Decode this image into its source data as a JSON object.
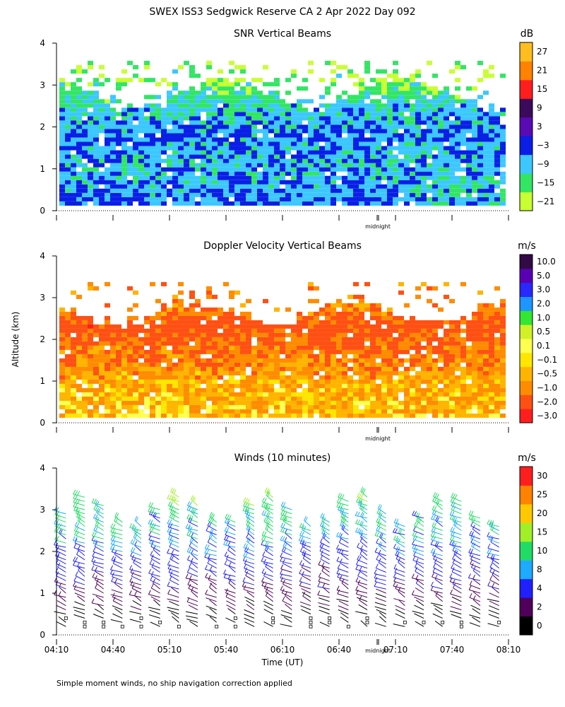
{
  "title": "SWEX ISS3 Sedgwick Reserve CA   2 Apr 2022 Day 092",
  "ylabel": "Altitude (km)",
  "footnote": "Simple moment winds, no ship navigation correction applied",
  "colors": {
    "snr": [
      "#c8ff32",
      "#32e664",
      "#3cc8ff",
      "#0a1ee6",
      "#5a0ab4",
      "#3c0a5a",
      "#ff1e1e",
      "#ff8200",
      "#ffbe1e"
    ],
    "doppler": [
      "#ff1e1e",
      "#ff5014",
      "#ff8c00",
      "#ffb400",
      "#ffe600",
      "#ffff50",
      "#d2f028",
      "#32e632",
      "#1e96ff",
      "#2828ff",
      "#5a00b4",
      "#320a46"
    ],
    "winds": [
      "#000000",
      "#50005a",
      "#2020ff",
      "#1eaaff",
      "#20dc64",
      "#a0f028",
      "#ffc800",
      "#ff8200",
      "#ff1e1e"
    ]
  },
  "chart_data": [
    {
      "type": "heatmap",
      "title": "SNR Vertical Beams",
      "xlabel": "",
      "ylabel": "Altitude (km)",
      "ylim": [
        0,
        4
      ],
      "yticks": [
        "0",
        "1",
        "2",
        "3",
        "4"
      ],
      "midnight_label": "midnight",
      "units": "dB",
      "colorbar_labels": [
        "27",
        "21",
        "15",
        "9",
        "3",
        "−3",
        "−9",
        "−15",
        "−21"
      ],
      "colorbar_min": -24,
      "colorbar_max": 30,
      "approx_profile": [
        {
          "alt_km": 0.3,
          "snr_db": -6
        },
        {
          "alt_km": 1.0,
          "snr_db": -9
        },
        {
          "alt_km": 1.7,
          "snr_db": -6
        },
        {
          "alt_km": 2.3,
          "snr_db": -9
        },
        {
          "alt_km": 2.8,
          "snr_db": -15
        },
        {
          "alt_km": 3.3,
          "snr_db": -18
        }
      ]
    },
    {
      "type": "heatmap",
      "title": "Doppler Velocity Vertical Beams",
      "xlabel": "",
      "ylabel": "Altitude (km)",
      "ylim": [
        0,
        4
      ],
      "yticks": [
        "0",
        "1",
        "2",
        "3",
        "4"
      ],
      "midnight_label": "midnight",
      "units": "m/s",
      "colorbar_labels": [
        "10.0",
        "5.0",
        "3.0",
        "2.0",
        "1.0",
        "0.5",
        "0.1",
        "−0.1",
        "−0.5",
        "−1.0",
        "−2.0",
        "−3.0"
      ],
      "approx_profile": [
        {
          "alt_km": 0.3,
          "w_ms": -0.2
        },
        {
          "alt_km": 1.0,
          "w_ms": -0.5
        },
        {
          "alt_km": 1.8,
          "w_ms": -1.0
        },
        {
          "alt_km": 2.3,
          "w_ms": -1.5
        },
        {
          "alt_km": 2.6,
          "w_ms": -0.8
        }
      ]
    },
    {
      "type": "scatter",
      "title": "Winds (10 minutes)",
      "xlabel": "Time (UT)",
      "ylabel": "Altitude (km)",
      "ylim": [
        0,
        4
      ],
      "yticks": [
        "0",
        "1",
        "2",
        "3",
        "4"
      ],
      "xticks": [
        "04:10",
        "04:40",
        "05:10",
        "05:40",
        "06:10",
        "06:40",
        "07:10",
        "07:40",
        "08:10"
      ],
      "midnight_label": "midnight",
      "units": "m/s",
      "colorbar_labels": [
        "30",
        "25",
        "20",
        "15",
        "10",
        "8",
        "4",
        "2",
        "0"
      ],
      "colorbar_bounds": [
        0,
        2,
        4,
        8,
        10,
        15,
        20,
        25,
        30,
        35
      ],
      "profile_times": [
        "04:15",
        "04:25",
        "04:35",
        "04:45",
        "04:55",
        "05:05",
        "05:15",
        "05:25",
        "05:35",
        "05:45",
        "05:55",
        "06:05",
        "06:15",
        "06:25",
        "06:35",
        "06:45",
        "06:55",
        "07:05",
        "07:15",
        "07:25",
        "07:35",
        "07:45",
        "07:55",
        "08:05"
      ],
      "approx_speed_profile": [
        {
          "alt_km": 0.3,
          "speed_ms": 1
        },
        {
          "alt_km": 1.0,
          "speed_ms": 3
        },
        {
          "alt_km": 1.7,
          "speed_ms": 6
        },
        {
          "alt_km": 2.3,
          "speed_ms": 9
        },
        {
          "alt_km": 2.8,
          "speed_ms": 11
        },
        {
          "alt_km": 3.3,
          "speed_ms": 14
        }
      ]
    }
  ]
}
